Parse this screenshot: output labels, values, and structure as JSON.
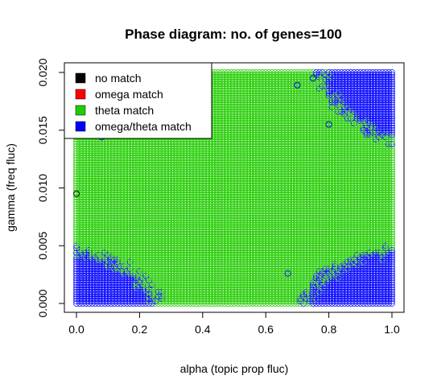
{
  "chart_data": {
    "type": "scatter",
    "title": "Phase diagram: no. of genes=100",
    "xlabel": "alpha (topic prop fluc)",
    "ylabel": "gamma (freq fluc)",
    "xlim": [
      0,
      1
    ],
    "ylim": [
      0,
      0.02
    ],
    "xticks": [
      "0.0",
      "0.2",
      "0.4",
      "0.6",
      "0.8",
      "1.0"
    ],
    "yticks": [
      "0.000",
      "0.005",
      "0.010",
      "0.015",
      "0.020"
    ],
    "grid": "off",
    "marker": "open-circle",
    "legend": {
      "placement": "top-left",
      "entries": [
        {
          "label": "no match",
          "color": "#000000"
        },
        {
          "label": "omega match",
          "color": "#ff0000"
        },
        {
          "label": "theta match",
          "color": "#22cc00"
        },
        {
          "label": "omega/theta match",
          "color": "#0000ff"
        }
      ]
    },
    "grid_sampling": {
      "x_step": 0.01,
      "y_step": 0.0002
    },
    "regions": [
      {
        "label": "theta match",
        "description": "all remaining grid points"
      },
      {
        "label": "omega/theta match",
        "corner": "bottom-left",
        "x_extent": 0.25,
        "y_extent": 0.0045
      },
      {
        "label": "omega/theta match",
        "corner": "bottom-right",
        "x_extent": 0.27,
        "y_extent": 0.0045
      },
      {
        "label": "omega/theta match",
        "corner": "top-right",
        "x_extent": 0.22,
        "y_extent": 0.0055
      }
    ],
    "outliers": [
      {
        "label": "no match",
        "x": 0.0,
        "y": 0.0095
      },
      {
        "label": "omega/theta match",
        "x": 0.08,
        "y": 0.0144
      },
      {
        "label": "omega/theta match",
        "x": 0.67,
        "y": 0.0026
      },
      {
        "label": "omega/theta match",
        "x": 0.7,
        "y": 0.0189
      },
      {
        "label": "omega/theta match",
        "x": 0.75,
        "y": 0.0195
      },
      {
        "label": "omega/theta match",
        "x": 0.8,
        "y": 0.0155
      }
    ]
  }
}
